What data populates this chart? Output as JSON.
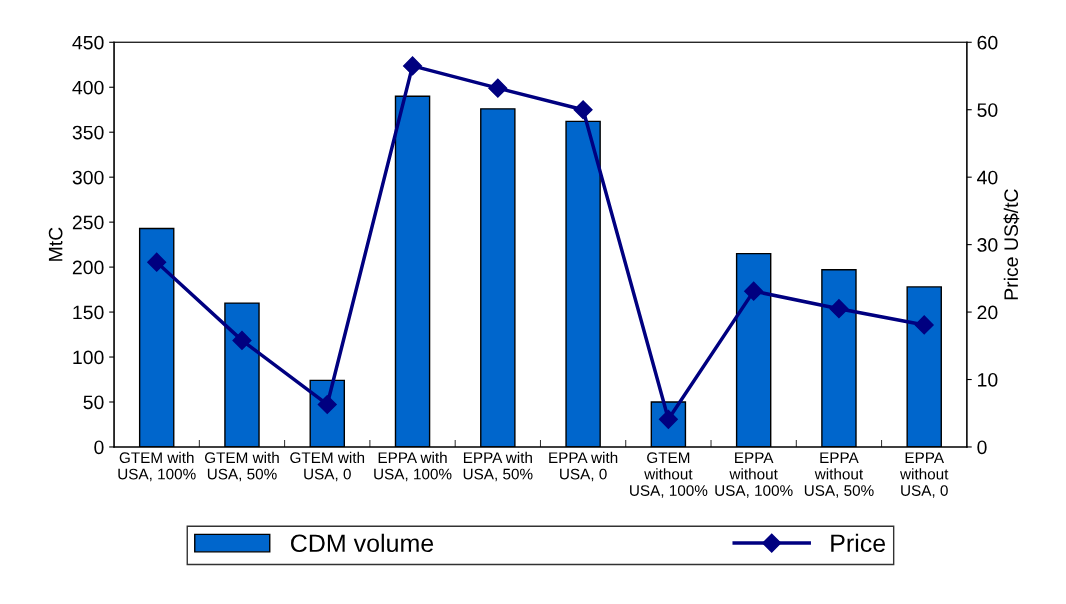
{
  "chart_data": {
    "type": "bar",
    "categories": [
      "GTEM with USA, 100%",
      "GTEM with USA, 50%",
      "GTEM with USA, 0",
      "EPPA with USA, 100%",
      "EPPA with USA, 50%",
      "EPPA with USA, 0",
      "GTEM without USA, 100%",
      "EPPA without USA, 100%",
      "EPPA without USA, 50%",
      "EPPA without USA, 0"
    ],
    "series": [
      {
        "name": "CDM volume",
        "color": "#0066cc",
        "values": [
          243,
          160,
          74,
          390,
          376,
          362,
          50,
          215,
          197,
          178
        ]
      },
      {
        "name": "Price",
        "type": "line",
        "axis": "y2",
        "color": "#000080",
        "marker": "diamond",
        "values": [
          27.4,
          15.8,
          6.3,
          56.5,
          53.2,
          50.0,
          4.1,
          23.1,
          20.5,
          18.1
        ]
      }
    ],
    "ylabel": "MtC",
    "y2label": "Price US$/tC",
    "ylim": [
      0,
      450
    ],
    "yticks": [
      0,
      50,
      100,
      150,
      200,
      250,
      300,
      350,
      400,
      450
    ],
    "y2lim": [
      0,
      60
    ],
    "y2ticks": [
      0,
      10,
      20,
      30,
      40,
      50,
      60
    ],
    "grid": false,
    "legend": "bottom"
  }
}
